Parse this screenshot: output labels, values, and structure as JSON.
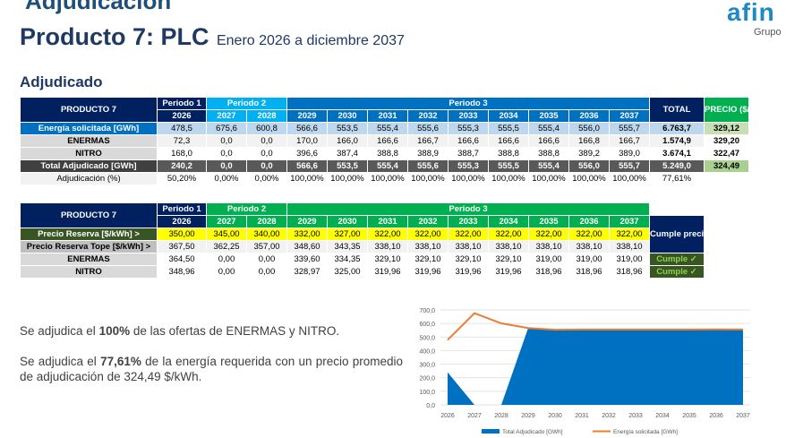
{
  "header": {
    "cut_title": "Adjudicación",
    "title": "Producto 7: PLC",
    "subtitle": "Enero 2026 a diciembre 2037",
    "logo": "afin",
    "logo_sub": "Grupo"
  },
  "section_title": "Adjudicado",
  "table1": {
    "header": "PRODUCTO 7",
    "periods": [
      "Periodo 1",
      "Periodo 2",
      "Periodo 3"
    ],
    "years": [
      "2026",
      "2027",
      "2028",
      "2029",
      "2030",
      "2031",
      "2032",
      "2033",
      "2034",
      "2035",
      "2036",
      "2037"
    ],
    "total_header": "TOTAL",
    "price_header": "PRECIO ($/kWh)",
    "rows": [
      {
        "label": "Energía solicitada [GWh]",
        "values": [
          "478,5",
          "675,6",
          "600,8",
          "566,6",
          "553,5",
          "555,4",
          "555,6",
          "555,3",
          "555,5",
          "555,4",
          "556,0",
          "555,7"
        ],
        "total": "6.763,7",
        "price": "329,12"
      },
      {
        "label": "ENERMAS",
        "values": [
          "72,3",
          "0,0",
          "0,0",
          "170,0",
          "166,0",
          "166,6",
          "166,7",
          "166,6",
          "166,6",
          "166,6",
          "166,8",
          "166,7"
        ],
        "total": "1.574,9",
        "price": "329,20"
      },
      {
        "label": "NITRO",
        "values": [
          "168,0",
          "0,0",
          "0,0",
          "396,6",
          "387,4",
          "388,8",
          "388,9",
          "388,7",
          "388,8",
          "388,8",
          "389,2",
          "389,0"
        ],
        "total": "3.674,1",
        "price": "322,47"
      },
      {
        "label": "Total Adjudicado [GWh]",
        "values": [
          "240,2",
          "0,0",
          "0,0",
          "566,6",
          "553,5",
          "555,4",
          "555,6",
          "555,3",
          "555,5",
          "555,4",
          "556,0",
          "555,7"
        ],
        "total": "5.249,0",
        "price": "324,49"
      }
    ],
    "pct_row": {
      "label": "Adjudicación (%)",
      "values": [
        "50,20%",
        "0,00%",
        "0,00%",
        "100,00%",
        "100,00%",
        "100,00%",
        "100,00%",
        "100,00%",
        "100,00%",
        "100,00%",
        "100,00%",
        "100,00%"
      ],
      "total": "77,61%"
    }
  },
  "table2": {
    "header": "PRODUCTO 7",
    "periods": [
      "Periodo 1",
      "Periodo 2",
      "Periodo 3"
    ],
    "years": [
      "2026",
      "2027",
      "2028",
      "2029",
      "2030",
      "2031",
      "2032",
      "2033",
      "2034",
      "2035",
      "2036",
      "2037"
    ],
    "cumple_header": "Cumple precio tope",
    "rows": [
      {
        "label": "Precio Reserva [$/kWh]  >",
        "values": [
          "350,00",
          "345,00",
          "340,00",
          "332,00",
          "327,00",
          "322,00",
          "322,00",
          "322,00",
          "322,00",
          "322,00",
          "322,00",
          "322,00"
        ],
        "cumple": ""
      },
      {
        "label": "Precio Reserva Tope [$/kWh]  >",
        "values": [
          "367,50",
          "362,25",
          "357,00",
          "348,60",
          "343,35",
          "338,10",
          "338,10",
          "338,10",
          "338,10",
          "338,10",
          "338,10",
          "338,10"
        ],
        "cumple": ""
      },
      {
        "label": "ENERMAS",
        "values": [
          "364,50",
          "0,00",
          "0,00",
          "339,60",
          "334,35",
          "329,10",
          "329,10",
          "329,10",
          "329,10",
          "319,00",
          "319,00",
          "319,00"
        ],
        "cumple": "Cumple ✓"
      },
      {
        "label": "NITRO",
        "values": [
          "348,96",
          "0,00",
          "0,00",
          "328,97",
          "325,00",
          "319,96",
          "319,96",
          "319,96",
          "319,96",
          "318,96",
          "318,96",
          "318,96"
        ],
        "cumple": "Cumple ✓"
      }
    ]
  },
  "text": {
    "p1_a": "Se adjudica el ",
    "p1_b": "100%",
    "p1_c": " de las ofertas de ENERMAS y NITRO.",
    "p2_a": "Se adjudica el ",
    "p2_b": "77,61%",
    "p2_c": " de la energía requerida con un precio promedio de adjudicación de 324,49 $/kWh."
  },
  "colors": {
    "navy": "#002060",
    "blue": "#0070c0",
    "cyan": "#00b0f0",
    "green": "#00b050",
    "area": "#0070c0",
    "line": "#ed7d31"
  },
  "chart_data": {
    "type": "area",
    "x": [
      "2026",
      "2027",
      "2028",
      "2029",
      "2030",
      "2031",
      "2032",
      "2033",
      "2034",
      "2035",
      "2036",
      "2037"
    ],
    "series": [
      {
        "name": "Total Adjudicado [GWh]",
        "type": "area",
        "values": [
          240.2,
          0,
          0,
          566.6,
          553.5,
          555.4,
          555.6,
          555.3,
          555.5,
          555.4,
          556.0,
          555.7
        ]
      },
      {
        "name": "Energía solicitada [GWh]",
        "type": "line",
        "values": [
          478.5,
          675.6,
          600.8,
          566.6,
          553.5,
          555.4,
          555.6,
          555.3,
          555.5,
          555.4,
          556.0,
          555.7
        ]
      }
    ],
    "y_ticks": [
      "0,0",
      "100,0",
      "200,0",
      "300,0",
      "400,0",
      "500,0",
      "600,0",
      "700,0"
    ],
    "ylim": [
      0,
      700
    ],
    "grid": true,
    "legend": "bottom"
  }
}
